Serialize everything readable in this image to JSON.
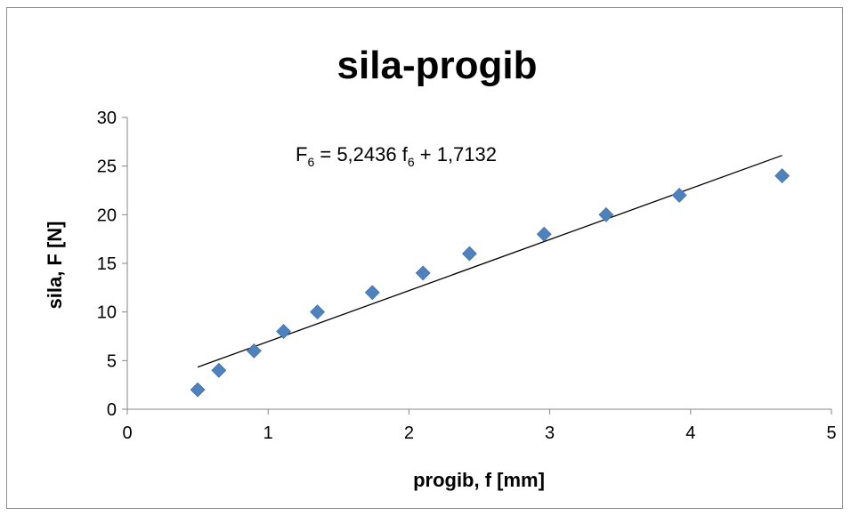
{
  "chart_data": {
    "type": "scatter",
    "title": "sila-progib",
    "xlabel": "progib, f [mm]",
    "ylabel": "sila, F [N]",
    "xlim": [
      0,
      5
    ],
    "ylim": [
      0,
      30
    ],
    "x_ticks": [
      "0",
      "1",
      "2",
      "3",
      "4",
      "5"
    ],
    "y_ticks": [
      "0",
      "5",
      "10",
      "15",
      "20",
      "25",
      "30"
    ],
    "grid": false,
    "legend": "none",
    "marker_color": "#4F81BD",
    "marker": "diamond",
    "series": [
      {
        "x": [
          0.5,
          0.65,
          0.9,
          1.11,
          1.35,
          1.74,
          2.1,
          2.43,
          2.96,
          3.4,
          3.92,
          4.65
        ],
        "y": [
          2,
          4,
          6,
          8,
          10,
          12,
          14,
          16,
          18,
          20,
          22,
          24
        ]
      }
    ],
    "trendline": {
      "slope": 5.2436,
      "intercept": 1.7132,
      "x_range": [
        0.5,
        4.65
      ],
      "color": "#000000",
      "equation": {
        "lhs": "F",
        "lhs_sub": "6",
        "mid": " = 5,2436 f",
        "mid_sub": "6",
        "rhs": " + 1,7132"
      }
    }
  }
}
